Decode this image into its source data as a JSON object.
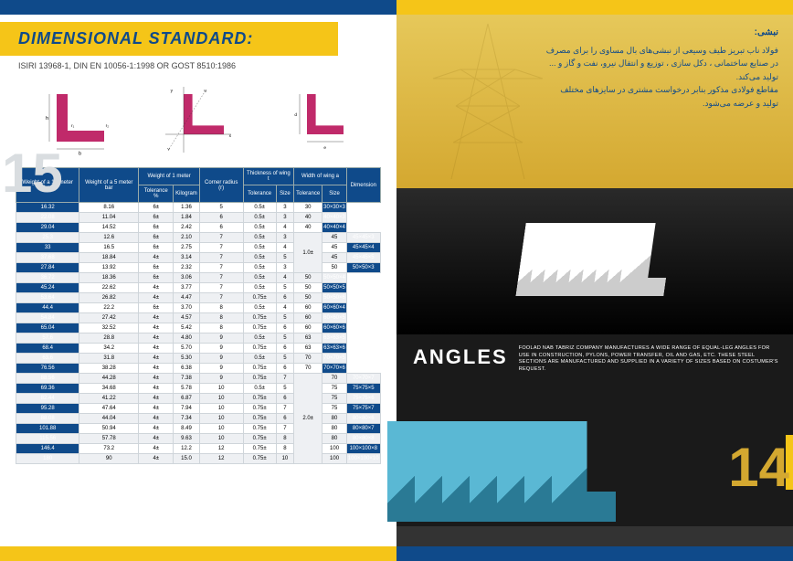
{
  "page_left_num": "15",
  "page_right_num": "14",
  "title": "DIMENSIONAL STANDARD:",
  "subtitle": "ISIRI 13968-1, DIN EN 10056-1:1998 OR GOST 8510:1986",
  "fa_title": "نبشی:",
  "fa_body_1": "فولاد ناب تبریز طیف وسیعی از نبشی‌های بال مساوی را برای مصرف",
  "fa_body_2": "در صنایع ساختمانی ، دکل سازی ، توزیع و انتقال نیرو، نفت و گاز و ...",
  "fa_body_3": "تولید می‌کند.",
  "fa_body_4": "مقاطع فولادی مذکور بنابر درخواست مشتری در سایزهای مختلف",
  "fa_body_5": "تولید و عرضه می‌شود.",
  "angles_title": "ANGLES",
  "angles_desc": "FOOLAD NAB TABRIZ COMPANY MANUFACTURES A WIDE RANGE OF EQUAL-LEG ANGLES FOR USE IN CONSTRUCTION, PYLONS, POWER TRANSFER, OIL AND GAS, ETC. THESE STEEL SECTIONS ARE MANUFACTURED AND SUPPLIED IN A VARIETY OF SIZES BASED ON COSTUMER'S REQUEST.",
  "headers": {
    "c1": "Weight of a 12 meter bar",
    "c2": "Weight of a 5 meter bar",
    "c3": "Weight of 1 meter",
    "c3a": "Tolerance %",
    "c3b": "Kilogram",
    "c4": "Corner radius (r)",
    "c5": "Thickness of wing t",
    "c5a": "Tolerance",
    "c5b": "Size",
    "c6": "Width of wing a",
    "c6a": "Tolerance",
    "c6b": "Size",
    "c7": "Dimension"
  },
  "rows": [
    [
      "16.32",
      "8.16",
      "6±",
      "1.36",
      "5",
      "0.5±",
      "3",
      "",
      "30",
      "30×30×3"
    ],
    [
      "22.08",
      "11.04",
      "6±",
      "1.84",
      "6",
      "0.5±",
      "3",
      "",
      "40",
      "40×40×3"
    ],
    [
      "29.04",
      "14.52",
      "6±",
      "2.42",
      "6",
      "0.5±",
      "4",
      "",
      "40",
      "40×40×4"
    ],
    [
      "25.3",
      "12.6",
      "6±",
      "2.10",
      "7",
      "0.5±",
      "3",
      "1.0±",
      "45",
      "45×45×3"
    ],
    [
      "33",
      "16.5",
      "6±",
      "2.75",
      "7",
      "0.5±",
      "4",
      "",
      "45",
      "45×45×4"
    ],
    [
      "37.68",
      "18.84",
      "4±",
      "3.14",
      "7",
      "0.5±",
      "5",
      "",
      "45",
      "45×45×5"
    ],
    [
      "27.84",
      "13.92",
      "6±",
      "2.32",
      "7",
      "0.5±",
      "3",
      "",
      "50",
      "50×50×3"
    ],
    [
      "36.72",
      "18.36",
      "6±",
      "3.06",
      "7",
      "0.5±",
      "4",
      "",
      "50",
      "50×50×4"
    ],
    [
      "45.24",
      "22.62",
      "4±",
      "3.77",
      "7",
      "0.5±",
      "5",
      "",
      "50",
      "50×50×5"
    ],
    [
      "53.64",
      "26.82",
      "4±",
      "4.47",
      "7",
      "0.75±",
      "6",
      "",
      "50",
      "50×50×6"
    ],
    [
      "44.4",
      "22.2",
      "6±",
      "3.70",
      "8",
      "0.5±",
      "4",
      "",
      "60",
      "60×60×4"
    ],
    [
      "54.84",
      "27.42",
      "4±",
      "4.57",
      "8",
      "0.75±",
      "5",
      "",
      "60",
      "60×60×5"
    ],
    [
      "65.04",
      "32.52",
      "4±",
      "5.42",
      "8",
      "0.75±",
      "6",
      "",
      "60",
      "60×60×6"
    ],
    [
      "57.6",
      "28.8",
      "4±",
      "4.80",
      "9",
      "0.5±",
      "5",
      "",
      "63",
      "63×63×5"
    ],
    [
      "68.4",
      "34.2",
      "4±",
      "5.70",
      "9",
      "0.75±",
      "6",
      "",
      "63",
      "63×63×6"
    ],
    [
      "63.6",
      "31.8",
      "4±",
      "5.30",
      "9",
      "0.5±",
      "5",
      "",
      "70",
      "70×70×5"
    ],
    [
      "76.56",
      "38.28",
      "4±",
      "6.38",
      "9",
      "0.75±",
      "6",
      "",
      "70",
      "70×70×6"
    ],
    [
      "88.56",
      "44.28",
      "4±",
      "7.38",
      "9",
      "0.75±",
      "7",
      "2.0±",
      "70",
      "70×70×7"
    ],
    [
      "69.36",
      "34.68",
      "4±",
      "5.78",
      "10",
      "0.5±",
      "5",
      "",
      "75",
      "75×75×5"
    ],
    [
      "82.44",
      "41.22",
      "4±",
      "6.87",
      "10",
      "0.75±",
      "6",
      "",
      "75",
      "75×75×6"
    ],
    [
      "95.28",
      "47.64",
      "4±",
      "7.94",
      "10",
      "0.75±",
      "7",
      "",
      "75",
      "75×75×7"
    ],
    [
      "88.08",
      "44.04",
      "4±",
      "7.34",
      "10",
      "0.75±",
      "6",
      "",
      "80",
      "80×80×6"
    ],
    [
      "101.88",
      "50.94",
      "4±",
      "8.49",
      "10",
      "0.75±",
      "7",
      "",
      "80",
      "80×80×7"
    ],
    [
      "115.56",
      "57.78",
      "4±",
      "9.63",
      "10",
      "0.75±",
      "8",
      "",
      "80",
      "80×80×8"
    ],
    [
      "146.4",
      "73.2",
      "4±",
      "12.2",
      "12",
      "0.75±",
      "8",
      "",
      "100",
      "100×100×8"
    ],
    [
      "180",
      "90",
      "4±",
      "15.0",
      "12",
      "0.75±",
      "10",
      "",
      "100",
      "100×100×10"
    ]
  ],
  "colors": {
    "yellow": "#f5c518",
    "blue": "#0f4a8a",
    "magenta": "#c02a6a"
  }
}
